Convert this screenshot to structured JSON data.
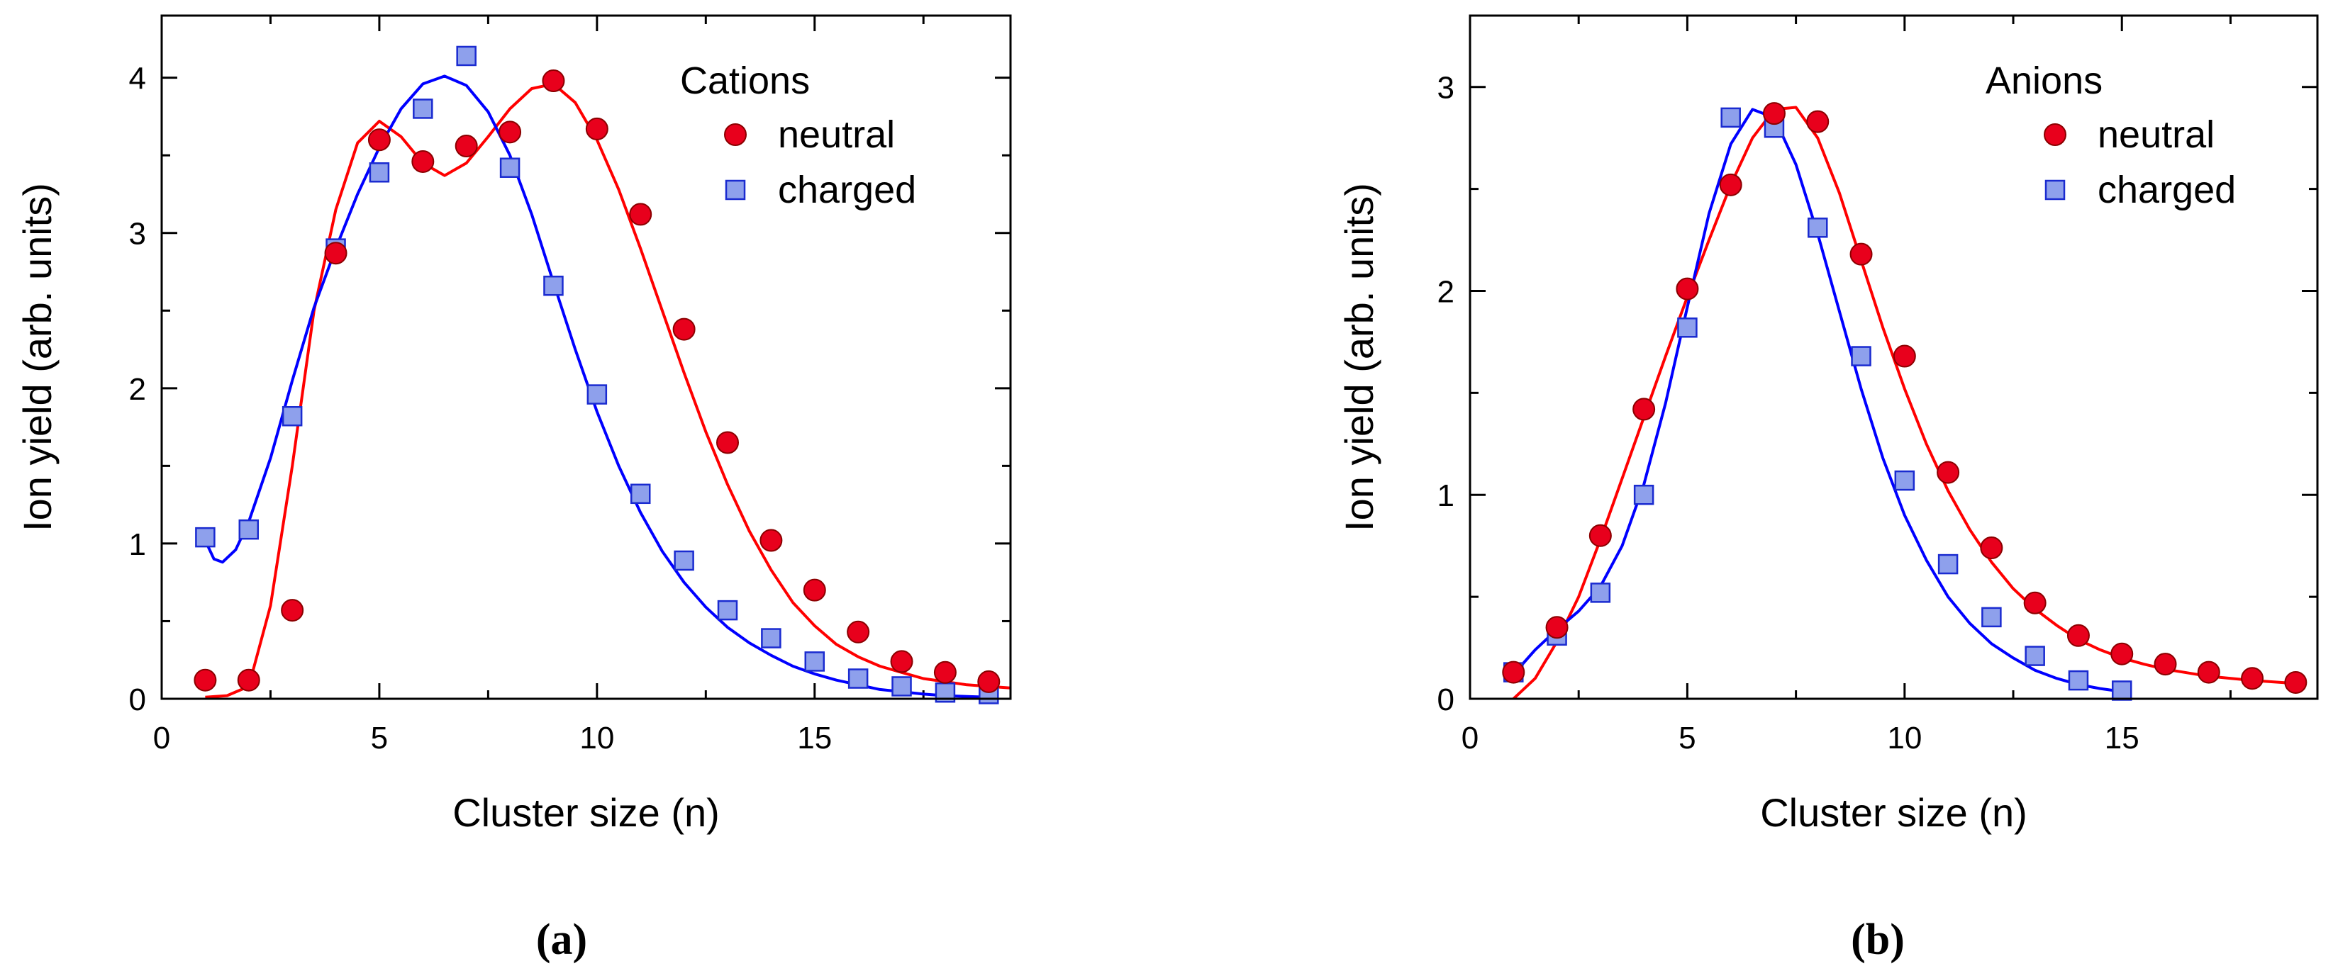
{
  "chart_data": [
    {
      "type": "scatter",
      "panel_label": "a",
      "xlabel": "Cluster size (n)",
      "ylabel": "Ion yield (arb. units)",
      "xlim": [
        0,
        19.5
      ],
      "ylim": [
        0,
        4.4
      ],
      "x_ticks": [
        0,
        5,
        10,
        15
      ],
      "y_ticks": [
        0,
        1,
        2,
        3,
        4
      ],
      "legend_title": "Cations",
      "legend_position": "top-right",
      "series": [
        {
          "name": "neutral",
          "marker": "circle",
          "color": "#ff0000",
          "fill": "#e8001c",
          "x": [
            1,
            2,
            3,
            4,
            5,
            6,
            7,
            8,
            9,
            10,
            11,
            12,
            13,
            14,
            15,
            16,
            17,
            18,
            19
          ],
          "y": [
            0.12,
            0.12,
            0.57,
            2.87,
            3.6,
            3.46,
            3.56,
            3.65,
            3.98,
            3.67,
            3.12,
            2.38,
            1.65,
            1.02,
            0.7,
            0.43,
            0.24,
            0.17,
            0.11
          ],
          "fit": [
            [
              1,
              0.01
            ],
            [
              1.5,
              0.02
            ],
            [
              2,
              0.08
            ],
            [
              2.5,
              0.6
            ],
            [
              3,
              1.5
            ],
            [
              3.5,
              2.5
            ],
            [
              4,
              3.15
            ],
            [
              4.5,
              3.58
            ],
            [
              5,
              3.72
            ],
            [
              5.5,
              3.62
            ],
            [
              6,
              3.45
            ],
            [
              6.5,
              3.37
            ],
            [
              7,
              3.45
            ],
            [
              7.5,
              3.62
            ],
            [
              8,
              3.8
            ],
            [
              8.5,
              3.93
            ],
            [
              9,
              3.96
            ],
            [
              9.5,
              3.84
            ],
            [
              10,
              3.6
            ],
            [
              10.5,
              3.28
            ],
            [
              11,
              2.9
            ],
            [
              11.5,
              2.5
            ],
            [
              12,
              2.1
            ],
            [
              12.5,
              1.72
            ],
            [
              13,
              1.38
            ],
            [
              13.5,
              1.08
            ],
            [
              14,
              0.83
            ],
            [
              14.5,
              0.62
            ],
            [
              15,
              0.47
            ],
            [
              15.5,
              0.35
            ],
            [
              16,
              0.27
            ],
            [
              16.5,
              0.21
            ],
            [
              17,
              0.17
            ],
            [
              17.5,
              0.13
            ],
            [
              18,
              0.11
            ],
            [
              18.5,
              0.09
            ],
            [
              19,
              0.08
            ],
            [
              19.5,
              0.07
            ]
          ]
        },
        {
          "name": "charged",
          "marker": "square",
          "color": "#0000ff",
          "fill": "#8ea0ec",
          "x": [
            1,
            2,
            3,
            4,
            5,
            6,
            7,
            8,
            9,
            10,
            11,
            12,
            13,
            14,
            15,
            16,
            17,
            18,
            19
          ],
          "y": [
            1.04,
            1.09,
            1.82,
            2.9,
            3.39,
            3.8,
            4.14,
            3.42,
            2.66,
            1.96,
            1.32,
            0.89,
            0.57,
            0.39,
            0.24,
            0.13,
            0.08,
            0.04,
            0.03
          ],
          "fit": [
            [
              1,
              1.02
            ],
            [
              1.2,
              0.9
            ],
            [
              1.4,
              0.88
            ],
            [
              1.7,
              0.96
            ],
            [
              2,
              1.14
            ],
            [
              2.5,
              1.55
            ],
            [
              3,
              2.05
            ],
            [
              3.5,
              2.52
            ],
            [
              4,
              2.9
            ],
            [
              4.5,
              3.25
            ],
            [
              5,
              3.55
            ],
            [
              5.5,
              3.8
            ],
            [
              6,
              3.96
            ],
            [
              6.5,
              4.01
            ],
            [
              7,
              3.95
            ],
            [
              7.5,
              3.78
            ],
            [
              8,
              3.5
            ],
            [
              8.5,
              3.12
            ],
            [
              9,
              2.68
            ],
            [
              9.5,
              2.25
            ],
            [
              10,
              1.85
            ],
            [
              10.5,
              1.5
            ],
            [
              11,
              1.2
            ],
            [
              11.5,
              0.95
            ],
            [
              12,
              0.75
            ],
            [
              12.5,
              0.59
            ],
            [
              13,
              0.46
            ],
            [
              13.5,
              0.36
            ],
            [
              14,
              0.28
            ],
            [
              14.5,
              0.21
            ],
            [
              15,
              0.16
            ],
            [
              15.5,
              0.12
            ],
            [
              16,
              0.09
            ],
            [
              16.5,
              0.06
            ],
            [
              17,
              0.045
            ],
            [
              17.5,
              0.03
            ],
            [
              18,
              0.02
            ],
            [
              18.5,
              0.015
            ],
            [
              19,
              0.01
            ]
          ]
        }
      ]
    },
    {
      "type": "scatter",
      "panel_label": "b",
      "xlabel": "Cluster size (n)",
      "ylabel": "Ion yield (arb. units)",
      "xlim": [
        0,
        19.5
      ],
      "ylim": [
        0,
        3.35
      ],
      "x_ticks": [
        0,
        5,
        10,
        15
      ],
      "y_ticks": [
        0,
        1,
        2,
        3
      ],
      "legend_title": "Anions",
      "legend_position": "top-right",
      "series": [
        {
          "name": "neutral",
          "marker": "circle",
          "color": "#ff0000",
          "fill": "#e8001c",
          "x": [
            1,
            2,
            3,
            4,
            5,
            6,
            7,
            8,
            9,
            10,
            11,
            12,
            13,
            14,
            15,
            16,
            17,
            18,
            19
          ],
          "y": [
            0.13,
            0.35,
            0.8,
            1.42,
            2.01,
            2.52,
            2.87,
            2.83,
            2.18,
            1.68,
            1.11,
            0.74,
            0.47,
            0.31,
            0.22,
            0.17,
            0.13,
            0.1,
            0.08
          ],
          "fit": [
            [
              1,
              0.0
            ],
            [
              1.5,
              0.1
            ],
            [
              2,
              0.28
            ],
            [
              2.5,
              0.5
            ],
            [
              3,
              0.78
            ],
            [
              3.5,
              1.08
            ],
            [
              4,
              1.38
            ],
            [
              4.5,
              1.68
            ],
            [
              5,
              1.97
            ],
            [
              5.5,
              2.25
            ],
            [
              6,
              2.52
            ],
            [
              6.5,
              2.75
            ],
            [
              7,
              2.89
            ],
            [
              7.5,
              2.9
            ],
            [
              8,
              2.75
            ],
            [
              8.5,
              2.48
            ],
            [
              9,
              2.15
            ],
            [
              9.5,
              1.82
            ],
            [
              10,
              1.52
            ],
            [
              10.5,
              1.25
            ],
            [
              11,
              1.02
            ],
            [
              11.5,
              0.83
            ],
            [
              12,
              0.67
            ],
            [
              12.5,
              0.54
            ],
            [
              13,
              0.44
            ],
            [
              13.5,
              0.36
            ],
            [
              14,
              0.29
            ],
            [
              14.5,
              0.24
            ],
            [
              15,
              0.2
            ],
            [
              15.5,
              0.17
            ],
            [
              16,
              0.145
            ],
            [
              17,
              0.11
            ],
            [
              18,
              0.09
            ],
            [
              19,
              0.075
            ]
          ]
        },
        {
          "name": "charged",
          "marker": "square",
          "color": "#0000ff",
          "fill": "#8ea0ec",
          "x": [
            1,
            2,
            3,
            4,
            5,
            6,
            7,
            8,
            9,
            10,
            11,
            12,
            13,
            14,
            15
          ],
          "y": [
            0.13,
            0.31,
            0.52,
            1.0,
            1.82,
            2.85,
            2.8,
            2.31,
            1.68,
            1.07,
            0.66,
            0.4,
            0.21,
            0.09,
            0.04
          ],
          "fit": [
            [
              1,
              0.12
            ],
            [
              1.5,
              0.24
            ],
            [
              2,
              0.34
            ],
            [
              2.5,
              0.43
            ],
            [
              3,
              0.55
            ],
            [
              3.5,
              0.75
            ],
            [
              4,
              1.05
            ],
            [
              4.5,
              1.45
            ],
            [
              5,
              1.92
            ],
            [
              5.5,
              2.38
            ],
            [
              6,
              2.72
            ],
            [
              6.5,
              2.89
            ],
            [
              7,
              2.85
            ],
            [
              7.5,
              2.62
            ],
            [
              8,
              2.28
            ],
            [
              8.5,
              1.9
            ],
            [
              9,
              1.52
            ],
            [
              9.5,
              1.18
            ],
            [
              10,
              0.9
            ],
            [
              10.5,
              0.68
            ],
            [
              11,
              0.5
            ],
            [
              11.5,
              0.37
            ],
            [
              12,
              0.27
            ],
            [
              12.5,
              0.2
            ],
            [
              13,
              0.14
            ],
            [
              13.5,
              0.1
            ],
            [
              14,
              0.07
            ],
            [
              14.5,
              0.05
            ],
            [
              15,
              0.035
            ]
          ]
        }
      ]
    }
  ],
  "captions": [
    "(a)",
    "(b)"
  ]
}
